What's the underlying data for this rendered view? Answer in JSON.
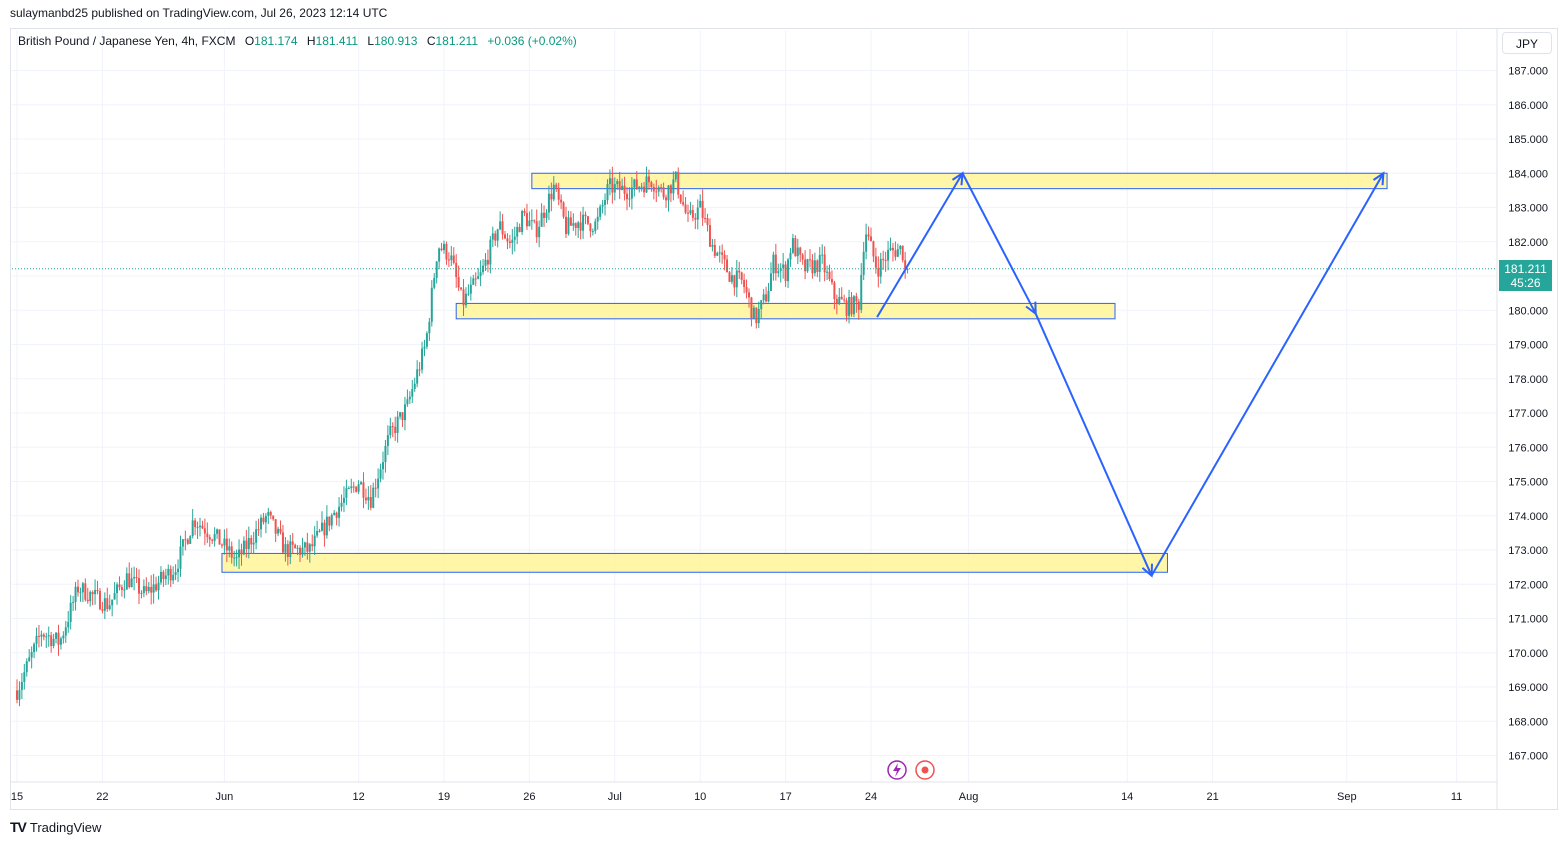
{
  "header": {
    "published": "sulaymanbd25 published on TradingView.com, Jul 26, 2023 12:14 UTC"
  },
  "legend": {
    "symbol": "British Pound / Japanese Yen, 4h, FXCM",
    "o_label": "O",
    "o_value": "181.174",
    "h_label": "H",
    "h_value": "181.411",
    "l_label": "L",
    "l_value": "180.913",
    "c_label": "C",
    "c_value": "181.211",
    "change": "+0.036 (+0.02%)"
  },
  "currency_button": "JPY",
  "price_tag": {
    "price": "181.211",
    "countdown": "45:26"
  },
  "brand": {
    "name": "TradingView",
    "logo": "TV"
  },
  "colors": {
    "up": "#26a69a",
    "down": "#ef5350",
    "zone_fill": "#fff59d",
    "zone_border": "#2962ff",
    "arrow": "#2962ff",
    "grid": "#f0f3fa",
    "axis_text": "#131722"
  },
  "chart_data": {
    "type": "candlestick",
    "ylim": [
      166.5,
      187.5
    ],
    "y_ticks": [
      167,
      168,
      169,
      170,
      171,
      172,
      173,
      174,
      175,
      176,
      177,
      178,
      179,
      180,
      181,
      182,
      183,
      184,
      185,
      186,
      187
    ],
    "y_tick_labels": [
      "167.000",
      "168.000",
      "169.000",
      "170.000",
      "171.000",
      "172.000",
      "173.000",
      "174.000",
      "175.000",
      "176.000",
      "177.000",
      "178.000",
      "179.000",
      "180.000",
      "181.000",
      "182.000",
      "183.000",
      "184.000",
      "185.000",
      "186.000",
      "187.000"
    ],
    "x_day_range": [
      0,
      120
    ],
    "x_ticks": [
      {
        "day": 0,
        "label": "15"
      },
      {
        "day": 7,
        "label": "22"
      },
      {
        "day": 17,
        "label": "Jun"
      },
      {
        "day": 28,
        "label": "12"
      },
      {
        "day": 35,
        "label": "19"
      },
      {
        "day": 42,
        "label": "26"
      },
      {
        "day": 49,
        "label": "Jul"
      },
      {
        "day": 56,
        "label": "10"
      },
      {
        "day": 63,
        "label": "17"
      },
      {
        "day": 70,
        "label": "24"
      },
      {
        "day": 78,
        "label": "Aug"
      },
      {
        "day": 91,
        "label": "14"
      },
      {
        "day": 98,
        "label": "21"
      },
      {
        "day": 109,
        "label": "Sep"
      },
      {
        "day": 118,
        "label": "11"
      }
    ],
    "last_price": 181.211,
    "price_path": [
      [
        0,
        168.9
      ],
      [
        2,
        170.6
      ],
      [
        3.5,
        170.3
      ],
      [
        5,
        171.9
      ],
      [
        7.5,
        171.4
      ],
      [
        9,
        172.2
      ],
      [
        10.5,
        171.7
      ],
      [
        13,
        172.5
      ],
      [
        14.5,
        173.9
      ],
      [
        16.5,
        173.3
      ],
      [
        18,
        172.7
      ],
      [
        20.5,
        174.0
      ],
      [
        22,
        173.0
      ],
      [
        24,
        173.0
      ],
      [
        26,
        174.1
      ],
      [
        28,
        175.0
      ],
      [
        29,
        174.5
      ],
      [
        30.5,
        176.3
      ],
      [
        32,
        177.2
      ],
      [
        33.5,
        179.0
      ],
      [
        34.5,
        181.9
      ],
      [
        35.5,
        181.6
      ],
      [
        36.5,
        180.2
      ],
      [
        38,
        181.0
      ],
      [
        39.5,
        182.5
      ],
      [
        40.5,
        181.9
      ],
      [
        41.5,
        182.8
      ],
      [
        42.5,
        182.3
      ],
      [
        44,
        183.6
      ],
      [
        45,
        182.4
      ],
      [
        46,
        182.6
      ],
      [
        47.5,
        182.5
      ],
      [
        48.5,
        183.6
      ],
      [
        50,
        183.5
      ],
      [
        52,
        183.8
      ],
      [
        53,
        183.4
      ],
      [
        54,
        183.8
      ],
      [
        55,
        182.6
      ],
      [
        56,
        183.0
      ],
      [
        57,
        181.9
      ],
      [
        58.5,
        181.0
      ],
      [
        59.5,
        180.8
      ],
      [
        60.5,
        179.7
      ],
      [
        61.5,
        180.5
      ],
      [
        62,
        181.4
      ],
      [
        63,
        181.1
      ],
      [
        63.5,
        182.0
      ],
      [
        64.5,
        181.2
      ],
      [
        66,
        181.4
      ],
      [
        67,
        180.4
      ],
      [
        68,
        180.1
      ],
      [
        69,
        180.2
      ],
      [
        69.5,
        182.4
      ],
      [
        70.5,
        181.2
      ],
      [
        71.5,
        181.7
      ],
      [
        72.5,
        181.8
      ],
      [
        73,
        181.2
      ]
    ],
    "zones": [
      {
        "x_start": 42.2,
        "x_end": 112.3,
        "y_low": 183.55,
        "y_high": 184.0
      },
      {
        "x_start": 36.0,
        "x_end": 90.0,
        "y_low": 179.75,
        "y_high": 180.2
      },
      {
        "x_start": 16.8,
        "x_end": 94.3,
        "y_low": 172.35,
        "y_high": 172.9
      }
    ],
    "projection_path": [
      [
        70.5,
        179.8
      ],
      [
        77.5,
        184.0
      ],
      [
        83.5,
        179.9
      ],
      [
        93,
        172.25
      ],
      [
        112,
        184.0
      ]
    ]
  }
}
